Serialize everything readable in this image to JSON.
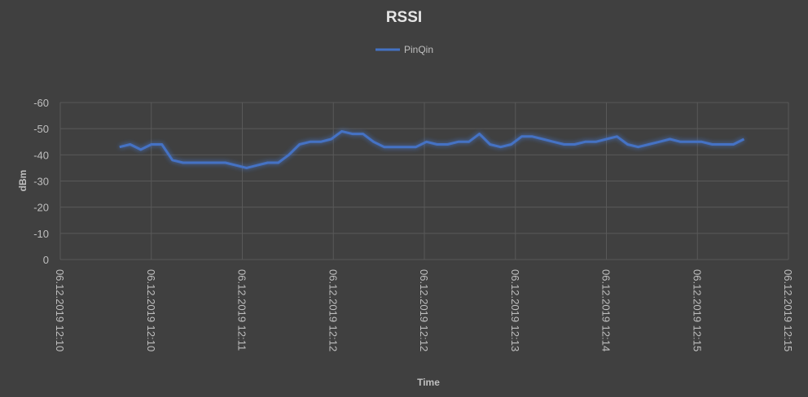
{
  "chart_data": {
    "type": "line",
    "title": "RSSI",
    "xlabel": "Time",
    "ylabel": "dBm",
    "ylim": [
      -60,
      0
    ],
    "y_reversed": true,
    "yticks": [
      "-60",
      "-50",
      "-40",
      "-30",
      "-20",
      "-10",
      "0"
    ],
    "xticks": [
      "06.12.2019 12:10",
      "06.12.2019 12:10",
      "06.12.2019 12:11",
      "06.12.2019 12:12",
      "06.12.2019 12:12",
      "06.12.2019 12:13",
      "06.12.2019 12:14",
      "06.12.2019 12:15",
      "06.12.2019 12:15"
    ],
    "xlim": [
      -5.6,
      63.2
    ],
    "grid": true,
    "legend_position": "top",
    "series": [
      {
        "name": "PinQin",
        "color": "#4472c4",
        "values": [
          -43,
          -44,
          -42,
          -44,
          -44,
          -38,
          -37,
          -37,
          -37,
          -37,
          -37,
          -36,
          -35,
          -36,
          -37,
          -37,
          -40,
          -44,
          -45,
          -45,
          -46,
          -49,
          -48,
          -48,
          -45,
          -43,
          -43,
          -43,
          -43,
          -45,
          -44,
          -44,
          -45,
          -45,
          -48,
          -44,
          -43,
          -44,
          -47,
          -47,
          -46,
          -45,
          -44,
          -44,
          -45,
          -45,
          -46,
          -47,
          -44,
          -43,
          -44,
          -45,
          -46,
          -45,
          -45,
          -45,
          -44,
          -44,
          -44,
          -46
        ]
      }
    ]
  }
}
